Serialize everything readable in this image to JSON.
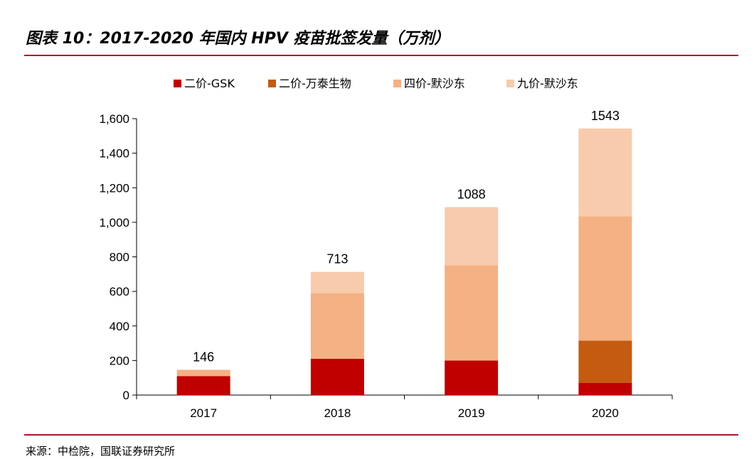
{
  "figure": {
    "title": "图表 10：2017-2020 年国内 HPV 疫苗批签发量（万剂）",
    "source": "来源：中检院，国联证券研究所"
  },
  "chart_data": {
    "type": "bar",
    "stacked": true,
    "title": "图表 10：2017-2020 年国内 HPV 疫苗批签发量（万剂）",
    "xlabel": "",
    "ylabel": "",
    "ylim": [
      0,
      1600
    ],
    "yticks": [
      0,
      200,
      400,
      600,
      800,
      1000,
      1200,
      1400,
      1600
    ],
    "ytick_labels": [
      "0",
      "200",
      "400",
      "600",
      "800",
      "1,000",
      "1,200",
      "1,400",
      "1,600"
    ],
    "categories": [
      "2017",
      "2018",
      "2019",
      "2020"
    ],
    "series": [
      {
        "name": "二价-GSK",
        "color": "#c00000",
        "values": [
          110,
          210,
          200,
          70
        ]
      },
      {
        "name": "二价-万泰生物",
        "color": "#c55a11",
        "values": [
          0,
          0,
          0,
          245
        ]
      },
      {
        "name": "四价-默沙东",
        "color": "#f4b183",
        "values": [
          36,
          380,
          552,
          720
        ]
      },
      {
        "name": "九价-默沙东",
        "color": "#f8cbad",
        "values": [
          0,
          123,
          336,
          508
        ]
      }
    ],
    "totals": [
      "146",
      "713",
      "1088",
      "1543"
    ],
    "legend_position": "top-center",
    "grid": false
  }
}
